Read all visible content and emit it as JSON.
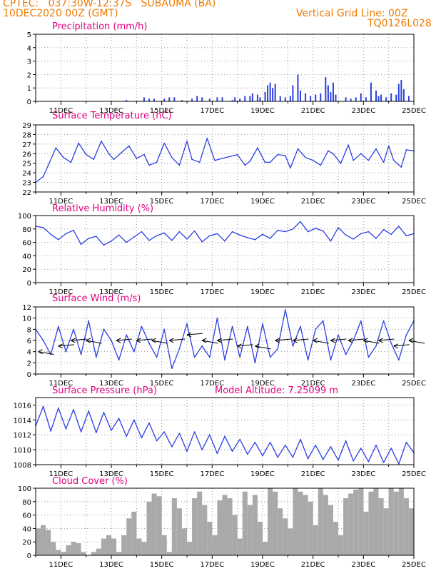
{
  "header": {
    "line1": "CPTEC:   037:30W-12:37S   SUBAUMA (BA)",
    "line2": "10DEC2020 00Z (GMT)",
    "grid_note": "Vertical Grid Line: 00Z",
    "code": "TQ0126L028"
  },
  "colors": {
    "header": "#f07a00",
    "titles": "#e0007f",
    "series": "#2a3fe0",
    "bars": "#2a3fe0",
    "cloud": "#a9a9a9"
  },
  "x_axis": {
    "start": "10DEC2020 00Z",
    "end": "25DEC2020 00Z",
    "tick_labels": [
      "11DEC",
      "13DEC",
      "15DEC",
      "17DEC",
      "19DEC",
      "21DEC",
      "23DEC",
      "25DEC"
    ],
    "tick_days": [
      11,
      13,
      15,
      17,
      19,
      21,
      23,
      25
    ]
  },
  "chart_data": [
    {
      "id": "precip",
      "type": "bar",
      "title": "Precipitation (mm/h)",
      "ylim": [
        0,
        5
      ],
      "yticks": [
        0,
        1,
        2,
        3,
        4,
        5
      ],
      "grid": true,
      "x_unit": "day of Dec 2020",
      "x": [
        13.6,
        14.3,
        14.5,
        14.7,
        15.1,
        15.3,
        15.5,
        15.8,
        16.2,
        16.4,
        16.6,
        16.9,
        17.2,
        17.4,
        17.8,
        17.9,
        18.1,
        18.3,
        18.5,
        18.6,
        18.8,
        18.9,
        19.1,
        19.2,
        19.3,
        19.4,
        19.5,
        19.7,
        19.9,
        20.1,
        20.2,
        20.4,
        20.5,
        20.7,
        20.9,
        21.1,
        21.3,
        21.5,
        21.6,
        21.7,
        21.8,
        21.9,
        22.3,
        22.5,
        22.7,
        22.9,
        23.1,
        23.3,
        23.5,
        23.6,
        23.7,
        23.9,
        24.1,
        24.3,
        24.4,
        24.5,
        24.6,
        24.8
      ],
      "values": [
        0.1,
        0.3,
        0.2,
        0.2,
        0.2,
        0.3,
        0.3,
        0.1,
        0.2,
        0.4,
        0.3,
        0.2,
        0.3,
        0.3,
        0.1,
        0.3,
        0.2,
        0.4,
        0.4,
        0.6,
        0.5,
        0.3,
        0.7,
        1.2,
        1.4,
        1.0,
        1.3,
        0.4,
        0.3,
        0.4,
        1.2,
        2.0,
        0.8,
        0.6,
        0.4,
        0.5,
        0.6,
        1.8,
        1.2,
        0.7,
        1.4,
        0.5,
        0.3,
        0.2,
        0.3,
        0.6,
        0.3,
        1.4,
        0.8,
        0.4,
        0.5,
        0.3,
        0.6,
        0.5,
        1.3,
        1.6,
        0.9,
        0.4
      ]
    },
    {
      "id": "temp",
      "type": "line",
      "title": "Surface Temperature (nC)",
      "ylim": [
        22,
        29
      ],
      "yticks": [
        22,
        23,
        24,
        25,
        26,
        27,
        28,
        29
      ],
      "grid": true,
      "x_unit": "day of Dec 2020",
      "x": [
        10.0,
        10.3,
        10.5,
        10.8,
        11.1,
        11.4,
        11.7,
        12.0,
        12.3,
        12.6,
        12.9,
        13.1,
        13.4,
        13.7,
        14.0,
        14.3,
        14.5,
        14.8,
        15.1,
        15.4,
        15.7,
        16.0,
        16.2,
        16.5,
        16.8,
        17.1,
        17.4,
        17.7,
        18.0,
        18.3,
        18.5,
        18.8,
        19.1,
        19.3,
        19.6,
        19.9,
        20.1,
        20.4,
        20.7,
        21.0,
        21.3,
        21.6,
        21.8,
        22.1,
        22.4,
        22.6,
        22.9,
        23.2,
        23.5,
        23.8,
        24.0,
        24.2,
        24.5,
        24.7,
        25.0
      ],
      "values": [
        23.0,
        23.6,
        24.8,
        26.6,
        25.6,
        25.1,
        27.1,
        25.9,
        25.4,
        27.3,
        26.0,
        25.4,
        26.1,
        26.8,
        25.5,
        25.9,
        24.8,
        25.1,
        27.1,
        25.6,
        24.8,
        27.3,
        25.4,
        25.1,
        27.6,
        25.3,
        25.5,
        25.7,
        25.9,
        24.8,
        25.2,
        26.6,
        25.1,
        25.1,
        25.9,
        25.8,
        24.5,
        26.5,
        25.6,
        25.3,
        24.8,
        26.3,
        26.0,
        25.0,
        26.9,
        25.3,
        26.0,
        25.3,
        26.5,
        25.1,
        26.8,
        25.3,
        24.6,
        26.4,
        26.3
      ]
    },
    {
      "id": "rh",
      "type": "line",
      "title": "Relative Humidity (%)",
      "ylim": [
        0,
        100
      ],
      "yticks": [
        0,
        20,
        40,
        60,
        80,
        100
      ],
      "grid": true,
      "x_unit": "day of Dec 2020",
      "x": [
        10.0,
        10.3,
        10.6,
        10.9,
        11.2,
        11.5,
        11.8,
        12.1,
        12.4,
        12.7,
        13.0,
        13.3,
        13.6,
        13.9,
        14.2,
        14.5,
        14.8,
        15.1,
        15.4,
        15.7,
        16.0,
        16.3,
        16.6,
        16.9,
        17.2,
        17.5,
        17.8,
        18.1,
        18.4,
        18.7,
        19.0,
        19.3,
        19.6,
        19.9,
        20.2,
        20.5,
        20.8,
        21.1,
        21.4,
        21.7,
        22.0,
        22.3,
        22.6,
        22.9,
        23.2,
        23.5,
        23.8,
        24.1,
        24.4,
        24.7,
        25.0
      ],
      "values": [
        84,
        82,
        72,
        64,
        73,
        78,
        57,
        66,
        69,
        56,
        62,
        71,
        60,
        68,
        76,
        63,
        70,
        74,
        63,
        76,
        65,
        77,
        61,
        70,
        73,
        62,
        76,
        71,
        67,
        64,
        72,
        66,
        78,
        76,
        80,
        91,
        76,
        81,
        77,
        62,
        82,
        71,
        65,
        73,
        76,
        66,
        79,
        72,
        84,
        70,
        73
      ]
    },
    {
      "id": "wind",
      "type": "line",
      "title": "Surface Wind (m/s)",
      "ylim": [
        0,
        12
      ],
      "yticks": [
        0,
        2,
        4,
        6,
        8,
        10,
        12
      ],
      "grid": true,
      "x_unit": "day of Dec 2020",
      "x": [
        10.0,
        10.3,
        10.6,
        10.9,
        11.2,
        11.5,
        11.8,
        12.1,
        12.4,
        12.7,
        13.0,
        13.3,
        13.6,
        13.9,
        14.2,
        14.5,
        14.8,
        15.1,
        15.4,
        15.7,
        16.0,
        16.3,
        16.6,
        16.9,
        17.2,
        17.5,
        17.8,
        18.1,
        18.4,
        18.7,
        19.0,
        19.3,
        19.6,
        19.9,
        20.2,
        20.5,
        20.8,
        21.1,
        21.4,
        21.7,
        22.0,
        22.3,
        22.6,
        22.9,
        23.2,
        23.5,
        23.8,
        24.1,
        24.4,
        24.7,
        25.0
      ],
      "values": [
        8.0,
        6.0,
        3.5,
        8.5,
        4.0,
        8.0,
        3.5,
        9.5,
        3.0,
        8.0,
        6.0,
        2.5,
        7.0,
        4.0,
        8.5,
        5.5,
        3.0,
        8.0,
        1.0,
        4.5,
        9.0,
        3.0,
        5.0,
        3.0,
        10.0,
        2.5,
        8.5,
        3.0,
        8.5,
        2.0,
        9.0,
        3.0,
        4.5,
        11.5,
        5.0,
        8.5,
        2.5,
        8.0,
        9.5,
        2.5,
        7.0,
        3.5,
        6.0,
        9.5,
        3.0,
        5.0,
        9.5,
        5.5,
        2.5,
        7.0,
        9.5
      ],
      "arrows": [
        10.1,
        10.9,
        11.4,
        12.0,
        13.2,
        14.0,
        14.6,
        15.3,
        16.0,
        16.6,
        17.2,
        18.0,
        18.7,
        19.5,
        20.2,
        21.0,
        21.7,
        22.4,
        23.0,
        23.6,
        24.2,
        24.8
      ]
    },
    {
      "id": "pressure",
      "type": "line",
      "title": "Surface Pressure (hPa)",
      "annotation": "Model Altitude: 7.25099 m",
      "ylim": [
        1008,
        1017
      ],
      "yticks": [
        1008,
        1010,
        1012,
        1014,
        1016
      ],
      "grid": true,
      "x_unit": "day of Dec 2020",
      "x": [
        10.0,
        10.3,
        10.6,
        10.9,
        11.2,
        11.5,
        11.8,
        12.1,
        12.4,
        12.7,
        13.0,
        13.3,
        13.6,
        13.9,
        14.2,
        14.5,
        14.8,
        15.1,
        15.4,
        15.7,
        16.0,
        16.3,
        16.6,
        16.9,
        17.2,
        17.5,
        17.8,
        18.1,
        18.4,
        18.7,
        19.0,
        19.3,
        19.6,
        19.9,
        20.2,
        20.5,
        20.8,
        21.1,
        21.4,
        21.7,
        22.0,
        22.3,
        22.6,
        22.9,
        23.2,
        23.5,
        23.8,
        24.1,
        24.4,
        24.7,
        25.0
      ],
      "values": [
        1013.2,
        1015.8,
        1012.5,
        1015.6,
        1012.8,
        1015.4,
        1012.4,
        1015.2,
        1012.3,
        1015.0,
        1012.6,
        1014.2,
        1011.8,
        1014.0,
        1011.6,
        1013.6,
        1011.2,
        1012.4,
        1010.4,
        1012.2,
        1009.8,
        1012.4,
        1010.0,
        1012.0,
        1009.5,
        1011.8,
        1009.8,
        1011.4,
        1009.4,
        1011.0,
        1009.2,
        1011.0,
        1009.0,
        1010.6,
        1009.0,
        1011.4,
        1008.8,
        1010.6,
        1008.7,
        1010.4,
        1008.6,
        1011.2,
        1008.5,
        1010.2,
        1008.4,
        1010.6,
        1008.3,
        1010.2,
        1008.1,
        1011.0,
        1009.6
      ]
    },
    {
      "id": "cloud",
      "type": "bar",
      "title": "Cloud Cover (%)",
      "ylim": [
        0,
        100
      ],
      "yticks": [
        0,
        20,
        40,
        60,
        80,
        100
      ],
      "grid": true,
      "x_unit": "day of Dec 2020",
      "x": [
        10.0,
        10.2,
        10.4,
        10.6,
        10.8,
        11.0,
        11.2,
        11.4,
        11.6,
        11.8,
        12.0,
        12.2,
        12.4,
        12.6,
        12.8,
        13.0,
        13.2,
        13.4,
        13.6,
        13.8,
        14.0,
        14.2,
        14.4,
        14.6,
        14.8,
        15.0,
        15.2,
        15.4,
        15.6,
        15.8,
        16.0,
        16.2,
        16.4,
        16.6,
        16.8,
        17.0,
        17.2,
        17.4,
        17.6,
        17.8,
        18.0,
        18.2,
        18.4,
        18.6,
        18.8,
        19.0,
        19.2,
        19.4,
        19.6,
        19.8,
        20.0,
        20.2,
        20.4,
        20.6,
        20.8,
        21.0,
        21.2,
        21.4,
        21.6,
        21.8,
        22.0,
        22.2,
        22.4,
        22.6,
        22.8,
        23.0,
        23.2,
        23.4,
        23.6,
        23.8,
        24.0,
        24.2,
        24.4,
        24.6,
        24.8
      ],
      "values": [
        40,
        45,
        38,
        20,
        8,
        5,
        15,
        20,
        18,
        5,
        0,
        5,
        10,
        25,
        30,
        25,
        5,
        30,
        55,
        65,
        25,
        20,
        80,
        92,
        88,
        30,
        5,
        85,
        70,
        40,
        20,
        85,
        95,
        75,
        50,
        30,
        82,
        90,
        85,
        60,
        25,
        95,
        75,
        90,
        50,
        20,
        100,
        95,
        70,
        55,
        40,
        100,
        95,
        90,
        80,
        45,
        100,
        90,
        75,
        50,
        30,
        85,
        92,
        98,
        100,
        65,
        95,
        100,
        85,
        70,
        100,
        95,
        100,
        85,
        70
      ]
    }
  ]
}
